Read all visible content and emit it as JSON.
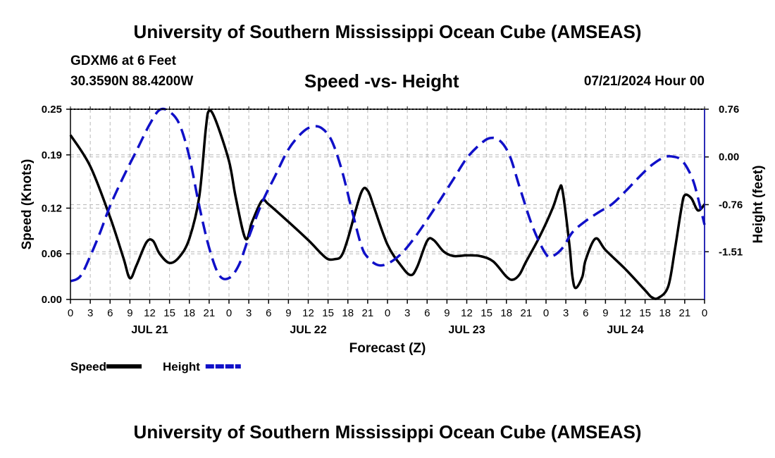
{
  "page": {
    "title_top": "University of Southern Mississippi Ocean Cube (AMSEAS)",
    "title_bottom": "University of Southern Mississippi Ocean Cube (AMSEAS)",
    "station_name": "GDXM6 at 6 Feet",
    "station_coords": "30.3590N  88.4200W",
    "chart_title": "Speed -vs- Height",
    "date_label": "07/21/2024 Hour 00"
  },
  "chart_data": {
    "type": "line",
    "title": "Speed -vs- Height",
    "xlabel": "Forecast (Z)",
    "ylabel_left": "Speed (Knots)",
    "ylabel_right": "Height (feet)",
    "x_range_hours": [
      0,
      96
    ],
    "x_tick_step_hours": 3,
    "x_tick_labels": [
      "0",
      "3",
      "6",
      "9",
      "12",
      "15",
      "18",
      "21",
      "0",
      "3",
      "6",
      "9",
      "12",
      "15",
      "18",
      "21",
      "0",
      "3",
      "6",
      "9",
      "12",
      "15",
      "18",
      "21",
      "0",
      "3",
      "6",
      "9",
      "12",
      "15",
      "18",
      "21",
      "0"
    ],
    "date_labels": [
      {
        "label": "JUL 21",
        "hour": 12
      },
      {
        "label": "JUL 22",
        "hour": 36
      },
      {
        "label": "JUL 23",
        "hour": 60
      },
      {
        "label": "JUL 24",
        "hour": 84
      }
    ],
    "y_left": {
      "range": [
        0,
        0.25
      ],
      "ticks": [
        0,
        0.06,
        0.12,
        0.19,
        0.25
      ],
      "tick_labels": [
        "0.00",
        "0.06",
        "0.12",
        "0.19",
        "0.25"
      ]
    },
    "y_right": {
      "range": [
        -2.27,
        0.76
      ],
      "ticks": [
        0.76,
        0.0,
        -0.76,
        -1.51
      ],
      "tick_labels": [
        "0.76",
        "0.00",
        "-0.76",
        "-1.51"
      ]
    },
    "grid": true,
    "legend": [
      {
        "name": "Speed",
        "color": "#000000",
        "style": "solid"
      },
      {
        "name": "Height",
        "color": "#1010c8",
        "style": "dashed"
      }
    ],
    "series": [
      {
        "name": "Speed",
        "axis": "left",
        "unit": "Knots",
        "color": "#000000",
        "points": [
          [
            0,
            0.216
          ],
          [
            3,
            0.175
          ],
          [
            6,
            0.108
          ],
          [
            8,
            0.055
          ],
          [
            9,
            0.028
          ],
          [
            10,
            0.045
          ],
          [
            11.5,
            0.075
          ],
          [
            12.5,
            0.077
          ],
          [
            13.5,
            0.06
          ],
          [
            15,
            0.048
          ],
          [
            16.5,
            0.056
          ],
          [
            18,
            0.08
          ],
          [
            19.5,
            0.135
          ],
          [
            20.5,
            0.225
          ],
          [
            21,
            0.248
          ],
          [
            22,
            0.235
          ],
          [
            24,
            0.182
          ],
          [
            25,
            0.135
          ],
          [
            26.5,
            0.08
          ],
          [
            27.5,
            0.102
          ],
          [
            29,
            0.13
          ],
          [
            30,
            0.125
          ],
          [
            33,
            0.102
          ],
          [
            36,
            0.078
          ],
          [
            38,
            0.06
          ],
          [
            39,
            0.053
          ],
          [
            40,
            0.053
          ],
          [
            41,
            0.057
          ],
          [
            42,
            0.08
          ],
          [
            44,
            0.14
          ],
          [
            45,
            0.143
          ],
          [
            46,
            0.12
          ],
          [
            48,
            0.072
          ],
          [
            50,
            0.045
          ],
          [
            51.5,
            0.032
          ],
          [
            52.5,
            0.043
          ],
          [
            54,
            0.077
          ],
          [
            55,
            0.078
          ],
          [
            56.5,
            0.063
          ],
          [
            58,
            0.057
          ],
          [
            60,
            0.058
          ],
          [
            62,
            0.057
          ],
          [
            64,
            0.05
          ],
          [
            66,
            0.03
          ],
          [
            67,
            0.026
          ],
          [
            68,
            0.033
          ],
          [
            69,
            0.05
          ],
          [
            71,
            0.082
          ],
          [
            73,
            0.12
          ],
          [
            74,
            0.145
          ],
          [
            74.5,
            0.143
          ],
          [
            75.5,
            0.075
          ],
          [
            76,
            0.03
          ],
          [
            76.5,
            0.015
          ],
          [
            77.5,
            0.03
          ],
          [
            78,
            0.052
          ],
          [
            79.5,
            0.08
          ],
          [
            81,
            0.065
          ],
          [
            84,
            0.04
          ],
          [
            87,
            0.012
          ],
          [
            88,
            0.003
          ],
          [
            89,
            0.002
          ],
          [
            90.5,
            0.017
          ],
          [
            91.5,
            0.065
          ],
          [
            92.5,
            0.12
          ],
          [
            93,
            0.137
          ],
          [
            94,
            0.133
          ],
          [
            95,
            0.117
          ],
          [
            96,
            0.125
          ]
        ]
      },
      {
        "name": "Height",
        "axis": "right",
        "unit": "feet",
        "color": "#1010c8",
        "points": [
          [
            0,
            -1.98
          ],
          [
            1.5,
            -1.9
          ],
          [
            3,
            -1.58
          ],
          [
            4.5,
            -1.2
          ],
          [
            6,
            -0.78
          ],
          [
            8,
            -0.32
          ],
          [
            10,
            0.1
          ],
          [
            12,
            0.52
          ],
          [
            13.5,
            0.75
          ],
          [
            15,
            0.72
          ],
          [
            16.5,
            0.52
          ],
          [
            18,
            0.0
          ],
          [
            19.5,
            -0.78
          ],
          [
            21,
            -1.45
          ],
          [
            22.5,
            -1.88
          ],
          [
            24,
            -1.93
          ],
          [
            25.5,
            -1.72
          ],
          [
            27,
            -1.28
          ],
          [
            29,
            -0.73
          ],
          [
            31,
            -0.3
          ],
          [
            33,
            0.12
          ],
          [
            35,
            0.38
          ],
          [
            36.5,
            0.48
          ],
          [
            38,
            0.46
          ],
          [
            39.5,
            0.27
          ],
          [
            41,
            -0.18
          ],
          [
            42.5,
            -0.8
          ],
          [
            44,
            -1.4
          ],
          [
            45,
            -1.6
          ],
          [
            46.5,
            -1.72
          ],
          [
            48,
            -1.7
          ],
          [
            50,
            -1.55
          ],
          [
            52,
            -1.3
          ],
          [
            54,
            -1.0
          ],
          [
            56,
            -0.68
          ],
          [
            58,
            -0.35
          ],
          [
            60,
            -0.02
          ],
          [
            62,
            0.2
          ],
          [
            63.5,
            0.3
          ],
          [
            65,
            0.26
          ],
          [
            66.5,
            0.02
          ],
          [
            68,
            -0.48
          ],
          [
            70,
            -1.12
          ],
          [
            72,
            -1.55
          ],
          [
            73,
            -1.58
          ],
          [
            74.5,
            -1.45
          ],
          [
            76,
            -1.2
          ],
          [
            78,
            -1.02
          ],
          [
            80,
            -0.88
          ],
          [
            82,
            -0.75
          ],
          [
            84,
            -0.55
          ],
          [
            86,
            -0.33
          ],
          [
            88,
            -0.13
          ],
          [
            90,
            0.0
          ],
          [
            91.5,
            0.0
          ],
          [
            92.5,
            -0.05
          ],
          [
            93.5,
            -0.2
          ],
          [
            94.5,
            -0.45
          ],
          [
            96,
            -1.08
          ]
        ]
      }
    ]
  }
}
